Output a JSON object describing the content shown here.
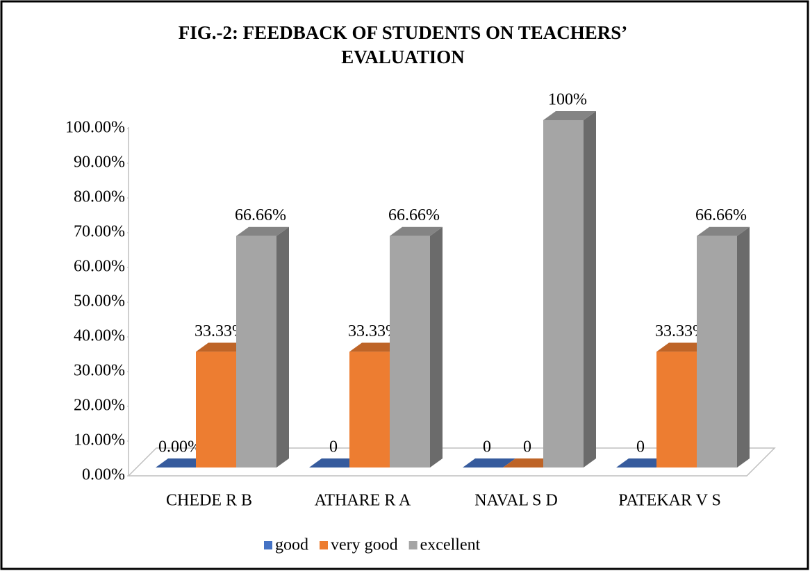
{
  "chart_data": {
    "type": "bar3d",
    "title": "FIG.-2: FEEDBACK OF STUDENTS ON TEACHERS’ EVALUATION",
    "categories": [
      "CHEDE R B",
      "ATHARE R A",
      "NAVAL S D",
      "PATEKAR V S"
    ],
    "series": [
      {
        "name": "good",
        "color": "#4472c4",
        "values": [
          0,
          0,
          0,
          0
        ],
        "value_labels": [
          "0.00%",
          "0",
          "0",
          "0"
        ]
      },
      {
        "name": "very good",
        "color": "#ed7d31",
        "values": [
          33.33,
          33.33,
          0,
          33.33
        ],
        "value_labels": [
          "33.33%",
          "33.33%",
          "0",
          "33.33%"
        ]
      },
      {
        "name": "excellent",
        "color": "#a5a5a5",
        "values": [
          66.66,
          66.66,
          100,
          66.66
        ],
        "value_labels": [
          "66.66%",
          "66.66%",
          "100%",
          "66.66%"
        ]
      }
    ],
    "ylim": [
      0,
      100
    ],
    "yticks": [
      {
        "value": 0,
        "label": "0.00%"
      },
      {
        "value": 10,
        "label": "10.00%"
      },
      {
        "value": 20,
        "label": "20.00%"
      },
      {
        "value": 30,
        "label": "30.00%"
      },
      {
        "value": 40,
        "label": "40.00%"
      },
      {
        "value": 50,
        "label": "50.00%"
      },
      {
        "value": 60,
        "label": "60.00%"
      },
      {
        "value": 70,
        "label": "70.00%"
      },
      {
        "value": 80,
        "label": "80.00%"
      },
      {
        "value": 90,
        "label": "90.00%"
      },
      {
        "value": 100,
        "label": "100.00%"
      }
    ],
    "legend": "bottom"
  }
}
